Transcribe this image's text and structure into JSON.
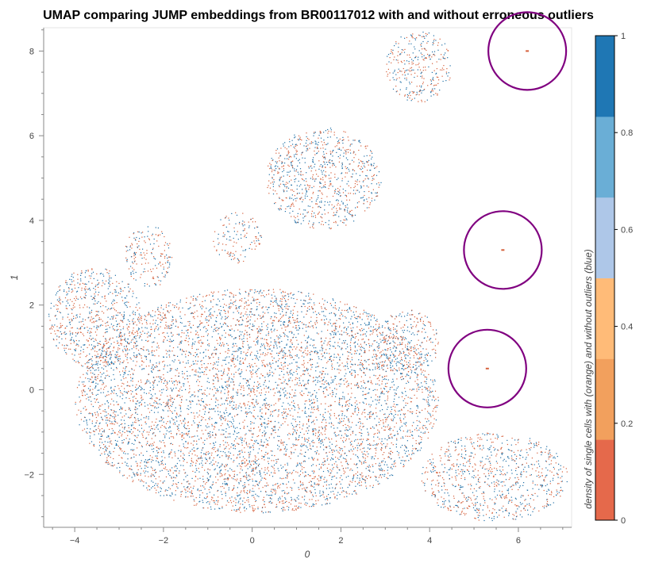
{
  "chart_data": {
    "type": "scatter",
    "title": "UMAP comparing JUMP embeddings from BR00117012 with and without erroneous outliers",
    "xlabel": "0",
    "ylabel": "1",
    "xlim": [
      -4.7,
      7.2
    ],
    "ylim": [
      -3.25,
      8.55
    ],
    "xticks": [
      -4,
      -2,
      0,
      2,
      4,
      6
    ],
    "yticks": [
      -2,
      0,
      2,
      4,
      6,
      8
    ],
    "xtick_labels": [
      "−4",
      "−2",
      "0",
      "2",
      "4",
      "6"
    ],
    "ytick_labels": [
      "−2",
      "0",
      "2",
      "4",
      "6",
      "8"
    ],
    "grid": false,
    "series": [
      {
        "name": "with outliers",
        "color": "#d6603b"
      },
      {
        "name": "without outliers",
        "color": "#1f6fa6"
      }
    ],
    "clusters": [
      {
        "label": "main mass",
        "x": [
          -4.0,
          4.2
        ],
        "y": [
          -2.9,
          2.4
        ],
        "density": 0.55
      },
      {
        "label": "right lower tail",
        "x": [
          3.8,
          7.1
        ],
        "y": [
          -3.1,
          -1.0
        ],
        "density": 0.45
      },
      {
        "label": "left arm",
        "x": [
          -4.6,
          -2.5
        ],
        "y": [
          0.5,
          2.9
        ],
        "density": 0.5
      },
      {
        "label": "upper central cluster",
        "x": [
          0.3,
          2.9
        ],
        "y": [
          3.8,
          6.2
        ],
        "density": 0.5
      },
      {
        "label": "upper right cluster",
        "x": [
          3.0,
          4.5
        ],
        "y": [
          6.8,
          8.5
        ],
        "density": 0.45
      },
      {
        "label": "right middle cluster",
        "x": [
          2.8,
          4.2
        ],
        "y": [
          0.3,
          1.9
        ],
        "density": 0.45
      },
      {
        "label": "left small cluster",
        "x": [
          -2.9,
          -1.8
        ],
        "y": [
          2.4,
          3.9
        ],
        "density": 0.4
      },
      {
        "label": "center small cluster",
        "x": [
          -0.9,
          0.2
        ],
        "y": [
          3.0,
          4.2
        ],
        "density": 0.35
      }
    ],
    "outlier_circles": [
      {
        "x": 6.2,
        "y": 8.0
      },
      {
        "x": 5.65,
        "y": 3.3
      },
      {
        "x": 5.3,
        "y": 0.5
      }
    ],
    "circle_color": "#800080",
    "colorbar": {
      "label": "density of single cells with (orange) and without outliers (blue)",
      "range": [
        0,
        1
      ],
      "tick_labels": [
        "0",
        "0.2",
        "0.4",
        "0.6",
        "0.8",
        "1"
      ],
      "bins": [
        "#e5694b",
        "#f2a05d",
        "#ffbb78",
        "#aec7e8",
        "#6aaed6",
        "#1f77b4"
      ]
    }
  }
}
